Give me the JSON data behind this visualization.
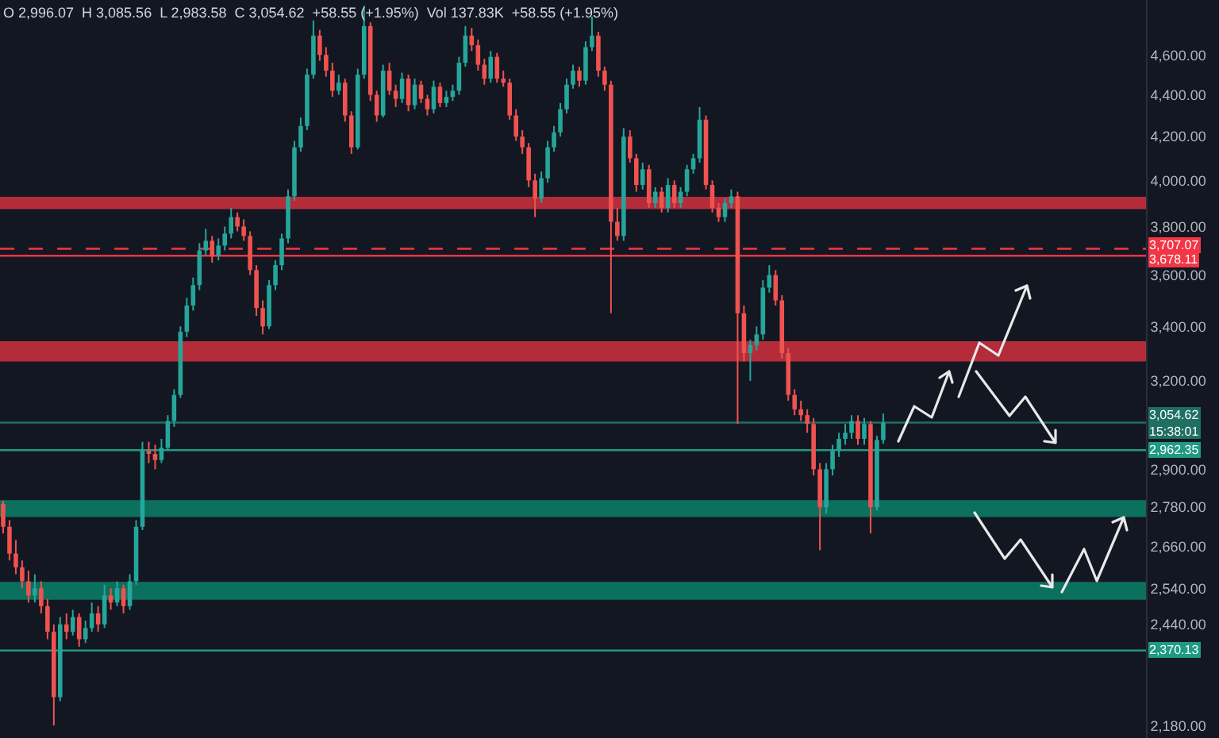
{
  "chart_data": {
    "type": "candlestick",
    "categories": [
      null,
      null,
      null,
      null,
      null,
      null,
      null,
      null,
      null,
      null,
      null,
      null,
      null,
      null,
      null,
      null,
      null,
      null,
      null,
      null,
      null,
      null,
      null,
      null,
      null,
      null,
      null,
      null,
      null,
      null,
      null,
      null,
      null,
      null,
      null,
      null,
      null,
      null,
      null,
      null,
      null,
      null,
      null,
      null,
      null,
      null,
      null,
      null,
      null,
      null,
      null,
      null,
      null,
      null,
      null,
      null,
      null,
      null,
      null,
      null,
      null,
      null,
      null,
      null,
      null,
      null,
      null,
      null,
      null,
      null,
      null,
      null,
      null,
      null,
      null,
      null,
      null,
      null,
      null,
      null,
      null,
      null,
      null,
      null,
      null,
      null,
      null,
      null,
      null,
      null,
      null,
      null,
      null,
      null,
      null,
      null,
      null,
      null,
      null,
      null,
      null,
      null,
      null,
      null,
      null,
      null,
      null,
      null,
      null,
      null,
      null,
      null,
      null,
      null,
      null,
      null,
      null,
      null,
      null,
      null,
      null,
      null,
      null,
      null,
      null,
      null,
      null,
      null,
      null,
      null,
      null,
      null,
      null,
      null,
      null,
      null,
      null,
      null,
      null,
      null,
      null,
      null,
      null,
      null,
      null,
      null,
      null,
      null,
      null,
      null,
      null,
      null,
      null,
      null,
      null,
      null,
      null,
      null,
      null,
      null,
      null,
      null,
      null,
      null,
      null,
      null,
      null,
      null,
      null,
      null,
      null,
      null,
      null,
      null,
      null,
      null,
      null,
      null,
      null,
      null,
      null
    ],
    "ohlc": [
      [
        2790,
        2800,
        2700,
        2720
      ],
      [
        2720,
        2740,
        2620,
        2640
      ],
      [
        2640,
        2680,
        2580,
        2600
      ],
      [
        2600,
        2620,
        2540,
        2560
      ],
      [
        2560,
        2590,
        2500,
        2520
      ],
      [
        2520,
        2580,
        2500,
        2540
      ],
      [
        2540,
        2560,
        2470,
        2490
      ],
      [
        2490,
        2510,
        2400,
        2420
      ],
      [
        2420,
        2440,
        2180,
        2250
      ],
      [
        2250,
        2460,
        2240,
        2440
      ],
      [
        2440,
        2470,
        2400,
        2420
      ],
      [
        2420,
        2480,
        2410,
        2460
      ],
      [
        2460,
        2470,
        2380,
        2400
      ],
      [
        2400,
        2450,
        2390,
        2430
      ],
      [
        2430,
        2500,
        2420,
        2470
      ],
      [
        2470,
        2490,
        2420,
        2440
      ],
      [
        2440,
        2550,
        2430,
        2520
      ],
      [
        2520,
        2540,
        2480,
        2500
      ],
      [
        2500,
        2560,
        2490,
        2540
      ],
      [
        2540,
        2550,
        2470,
        2490
      ],
      [
        2490,
        2580,
        2480,
        2560
      ],
      [
        2560,
        2740,
        2550,
        2720
      ],
      [
        2720,
        2990,
        2710,
        2960
      ],
      [
        2960,
        2990,
        2920,
        2950
      ],
      [
        2950,
        2980,
        2900,
        2930
      ],
      [
        2930,
        3000,
        2920,
        2970
      ],
      [
        2970,
        3080,
        2960,
        3060
      ],
      [
        3060,
        3170,
        3040,
        3150
      ],
      [
        3150,
        3400,
        3140,
        3380
      ],
      [
        3380,
        3510,
        3360,
        3480
      ],
      [
        3480,
        3590,
        3460,
        3560
      ],
      [
        3560,
        3730,
        3540,
        3700
      ],
      [
        3700,
        3790,
        3680,
        3740
      ],
      [
        3740,
        3760,
        3650,
        3680
      ],
      [
        3680,
        3750,
        3660,
        3720
      ],
      [
        3720,
        3800,
        3700,
        3770
      ],
      [
        3770,
        3880,
        3750,
        3840
      ],
      [
        3840,
        3860,
        3780,
        3800
      ],
      [
        3800,
        3830,
        3740,
        3760
      ],
      [
        3760,
        3780,
        3600,
        3620
      ],
      [
        3620,
        3640,
        3440,
        3470
      ],
      [
        3470,
        3500,
        3370,
        3400
      ],
      [
        3400,
        3580,
        3390,
        3560
      ],
      [
        3560,
        3660,
        3540,
        3640
      ],
      [
        3640,
        3770,
        3620,
        3750
      ],
      [
        3750,
        3960,
        3730,
        3930
      ],
      [
        3930,
        4180,
        3910,
        4150
      ],
      [
        4150,
        4290,
        4130,
        4250
      ],
      [
        4250,
        4530,
        4230,
        4500
      ],
      [
        4500,
        4780,
        4480,
        4700
      ],
      [
        4700,
        4730,
        4570,
        4600
      ],
      [
        4600,
        4640,
        4490,
        4520
      ],
      [
        4520,
        4560,
        4390,
        4420
      ],
      [
        4420,
        4500,
        4400,
        4460
      ],
      [
        4460,
        4480,
        4270,
        4300
      ],
      [
        4300,
        4320,
        4120,
        4150
      ],
      [
        4150,
        4530,
        4140,
        4500
      ],
      [
        4500,
        4860,
        4480,
        4750
      ],
      [
        4750,
        4770,
        4370,
        4400
      ],
      [
        4400,
        4420,
        4270,
        4300
      ],
      [
        4300,
        4550,
        4290,
        4520
      ],
      [
        4520,
        4560,
        4400,
        4420
      ],
      [
        4420,
        4450,
        4340,
        4380
      ],
      [
        4380,
        4510,
        4360,
        4480
      ],
      [
        4480,
        4500,
        4320,
        4350
      ],
      [
        4350,
        4480,
        4330,
        4450
      ],
      [
        4450,
        4470,
        4360,
        4380
      ],
      [
        4380,
        4400,
        4300,
        4330
      ],
      [
        4330,
        4470,
        4310,
        4440
      ],
      [
        4440,
        4460,
        4340,
        4360
      ],
      [
        4360,
        4420,
        4340,
        4390
      ],
      [
        4390,
        4450,
        4370,
        4420
      ],
      [
        4420,
        4590,
        4400,
        4560
      ],
      [
        4560,
        4750,
        4540,
        4700
      ],
      [
        4700,
        4740,
        4620,
        4650
      ],
      [
        4650,
        4680,
        4520,
        4550
      ],
      [
        4550,
        4580,
        4450,
        4480
      ],
      [
        4480,
        4620,
        4460,
        4590
      ],
      [
        4590,
        4610,
        4460,
        4480
      ],
      [
        4480,
        4520,
        4440,
        4460
      ],
      [
        4460,
        4480,
        4280,
        4300
      ],
      [
        4300,
        4330,
        4180,
        4200
      ],
      [
        4200,
        4230,
        4120,
        4150
      ],
      [
        4150,
        4170,
        3970,
        4000
      ],
      [
        4000,
        4030,
        3840,
        3920
      ],
      [
        3920,
        4040,
        3900,
        4010
      ],
      [
        4010,
        4180,
        3990,
        4150
      ],
      [
        4150,
        4250,
        4130,
        4220
      ],
      [
        4220,
        4360,
        4200,
        4330
      ],
      [
        4330,
        4480,
        4310,
        4450
      ],
      [
        4450,
        4550,
        4430,
        4520
      ],
      [
        4520,
        4540,
        4440,
        4470
      ],
      [
        4470,
        4670,
        4450,
        4640
      ],
      [
        4640,
        4800,
        4620,
        4700
      ],
      [
        4700,
        4720,
        4490,
        4520
      ],
      [
        4520,
        4540,
        4420,
        4450
      ],
      [
        4450,
        4470,
        3450,
        3820
      ],
      [
        3820,
        3880,
        3740,
        3760
      ],
      [
        3760,
        4240,
        3740,
        4200
      ],
      [
        4200,
        4230,
        4080,
        4100
      ],
      [
        4100,
        4120,
        3950,
        3980
      ],
      [
        3980,
        4080,
        3960,
        4050
      ],
      [
        4050,
        4070,
        3880,
        3900
      ],
      [
        3900,
        3970,
        3880,
        3950
      ],
      [
        3950,
        3970,
        3860,
        3880
      ],
      [
        3880,
        4010,
        3860,
        3980
      ],
      [
        3980,
        4000,
        3880,
        3900
      ],
      [
        3900,
        3970,
        3880,
        3950
      ],
      [
        3950,
        4070,
        3930,
        4050
      ],
      [
        4050,
        4120,
        4030,
        4100
      ],
      [
        4100,
        4340,
        4080,
        4280
      ],
      [
        4280,
        4300,
        3960,
        3980
      ],
      [
        3980,
        4000,
        3860,
        3880
      ],
      [
        3880,
        3900,
        3820,
        3840
      ],
      [
        3840,
        3920,
        3820,
        3900
      ],
      [
        3900,
        3960,
        3880,
        3930
      ],
      [
        3930,
        3950,
        3050,
        3450
      ],
      [
        3450,
        3480,
        3270,
        3300
      ],
      [
        3300,
        3350,
        3200,
        3330
      ],
      [
        3330,
        3400,
        3310,
        3370
      ],
      [
        3370,
        3580,
        3350,
        3550
      ],
      [
        3550,
        3640,
        3530,
        3600
      ],
      [
        3600,
        3620,
        3480,
        3500
      ],
      [
        3500,
        3520,
        3280,
        3300
      ],
      [
        3300,
        3320,
        3130,
        3150
      ],
      [
        3150,
        3170,
        3080,
        3100
      ],
      [
        3100,
        3130,
        3060,
        3080
      ],
      [
        3080,
        3100,
        3020,
        3050
      ],
      [
        3050,
        3070,
        2880,
        2900
      ],
      [
        2900,
        2920,
        2650,
        2780
      ],
      [
        2780,
        2920,
        2760,
        2900
      ],
      [
        2900,
        2980,
        2880,
        2960
      ],
      [
        2960,
        3020,
        2940,
        3000
      ],
      [
        3000,
        3050,
        2980,
        3020
      ],
      [
        3020,
        3080,
        3000,
        3060
      ],
      [
        3060,
        3080,
        2980,
        3000
      ],
      [
        3000,
        3070,
        2980,
        3050
      ],
      [
        3050,
        3060,
        2700,
        2780
      ],
      [
        2780,
        3010,
        2770,
        2996.07
      ],
      [
        2996.07,
        3085.56,
        2983.58,
        3054.62
      ],
      null,
      null,
      null,
      null,
      null,
      null,
      null,
      null,
      null,
      null,
      null,
      null,
      null,
      null,
      null,
      null,
      null,
      null,
      null,
      null,
      null,
      null,
      null,
      null,
      null,
      null,
      null,
      null,
      null,
      null,
      null,
      null,
      null,
      null,
      null,
      null,
      null,
      null,
      null,
      null,
      null
    ],
    "log": true,
    "ylim": [
      2150,
      4890
    ],
    "yticks": [
      {
        "value": 4600,
        "label": "4,600.00"
      },
      {
        "value": 4400,
        "label": "4,400.00"
      },
      {
        "value": 4200,
        "label": "4,200.00"
      },
      {
        "value": 4000,
        "label": "4,000.00"
      },
      {
        "value": 3800,
        "label": "3,800.00"
      },
      {
        "value": 3600,
        "label": "3,600.00"
      },
      {
        "value": 3400,
        "label": "3,400.00"
      },
      {
        "value": 3200,
        "label": "3,200.00"
      },
      {
        "value": 2900,
        "label": "2,900.00"
      },
      {
        "value": 2780,
        "label": "2,780.00"
      },
      {
        "value": 2660,
        "label": "2,660.00"
      },
      {
        "value": 2540,
        "label": "2,540.00"
      },
      {
        "value": 2440,
        "label": "2,440.00"
      },
      {
        "value": 2180,
        "label": "2,180.00"
      }
    ],
    "tick_labels": "y",
    "grid": false,
    "bands": [
      {
        "axis": "y",
        "from": 3874,
        "to": 3928,
        "color": "#c62f3c"
      },
      {
        "axis": "y",
        "from": 3270,
        "to": 3344,
        "color": "#c62f3c"
      },
      {
        "axis": "y",
        "from": 2750,
        "to": 2802,
        "color": "#0c7a66"
      },
      {
        "axis": "y",
        "from": 2508,
        "to": 2558,
        "color": "#0c7a66"
      }
    ],
    "ref_lines": [
      {
        "axis": "y",
        "value": 3707.07,
        "label": "3,707.07",
        "color": "#f23645",
        "line_style": "dashed"
      },
      {
        "axis": "y",
        "value": 3678.11,
        "label": "3,678.11",
        "color": "#f23645",
        "line_style": "solid"
      },
      {
        "axis": "y",
        "value": 3054.62,
        "label": "3,054.62\n15:38:01",
        "color": "#1f6f62",
        "line_style": "solid"
      },
      {
        "axis": "y",
        "value": 2962.35,
        "label": "2,962.35",
        "color": "#1f9a84",
        "line_style": "solid"
      },
      {
        "axis": "y",
        "value": 2370.13,
        "label": "2,370.13",
        "color": "#1f9a84",
        "line_style": "solid"
      }
    ],
    "annotations": [
      "O 2,996.07  H 3,085.56  L 2,983.58  C 3,054.62  +58.55 (+1.95%)  Vol 137.83K  +58.55 (+1.95%)"
    ]
  }
}
